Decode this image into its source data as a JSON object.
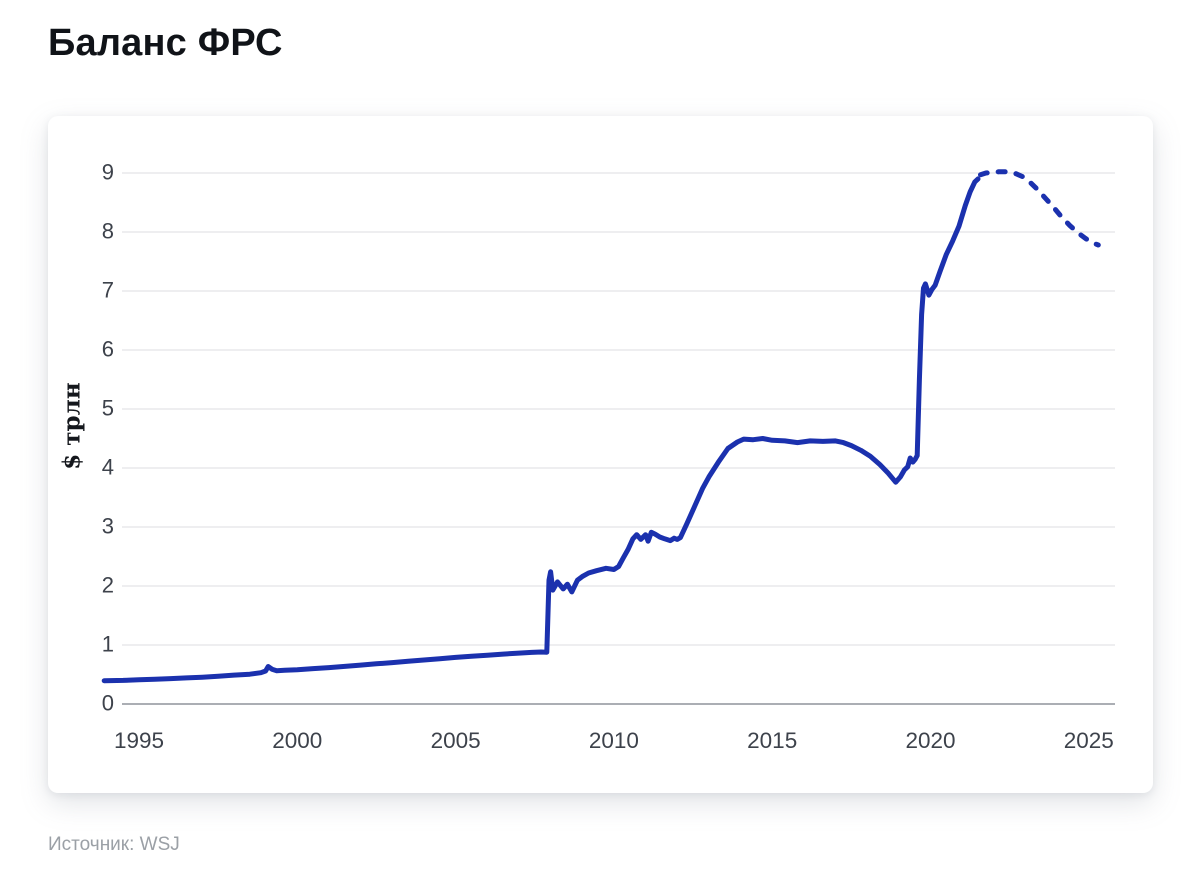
{
  "page": {
    "title": "Баланс ФРС",
    "source": "Источник: WSJ"
  },
  "chart_data": {
    "type": "line",
    "title": "Баланс ФРС",
    "xlabel": "",
    "ylabel": "$ трлн",
    "x_ticks": [
      1995,
      2000,
      2005,
      2010,
      2015,
      2020,
      2025
    ],
    "y_ticks": [
      0,
      1,
      2,
      3,
      4,
      5,
      6,
      7,
      8,
      9
    ],
    "xlim": [
      1993.9,
      2026.0
    ],
    "ylim": [
      0,
      9
    ],
    "grid": "horizontal",
    "legend": "none",
    "line_color": "#1b31ae",
    "series": [
      {
        "style": "solid",
        "points": [
          [
            1993.9,
            0.395
          ],
          [
            1994.5,
            0.4
          ],
          [
            1995,
            0.41
          ],
          [
            1995.5,
            0.42
          ],
          [
            1996,
            0.43
          ],
          [
            1996.5,
            0.443
          ],
          [
            1997,
            0.455
          ],
          [
            1997.5,
            0.47
          ],
          [
            1998,
            0.49
          ],
          [
            1998.5,
            0.505
          ],
          [
            1998.85,
            0.53
          ],
          [
            1999.0,
            0.56
          ],
          [
            1999.08,
            0.635
          ],
          [
            1999.2,
            0.59
          ],
          [
            1999.35,
            0.565
          ],
          [
            1999.6,
            0.572
          ],
          [
            2000,
            0.582
          ],
          [
            2000.5,
            0.6
          ],
          [
            2001,
            0.617
          ],
          [
            2001.5,
            0.638
          ],
          [
            2002,
            0.66
          ],
          [
            2002.5,
            0.681
          ],
          [
            2003,
            0.702
          ],
          [
            2003.5,
            0.723
          ],
          [
            2004,
            0.745
          ],
          [
            2004.5,
            0.768
          ],
          [
            2005,
            0.79
          ],
          [
            2005.5,
            0.808
          ],
          [
            2006,
            0.825
          ],
          [
            2006.5,
            0.845
          ],
          [
            2007,
            0.862
          ],
          [
            2007.4,
            0.875
          ],
          [
            2007.7,
            0.882
          ],
          [
            2007.88,
            0.878
          ],
          [
            2007.95,
            2.1
          ],
          [
            2008.0,
            2.24
          ],
          [
            2008.07,
            1.93
          ],
          [
            2008.22,
            2.07
          ],
          [
            2008.4,
            1.95
          ],
          [
            2008.53,
            2.03
          ],
          [
            2008.67,
            1.9
          ],
          [
            2008.85,
            2.1
          ],
          [
            2009.0,
            2.16
          ],
          [
            2009.2,
            2.22
          ],
          [
            2009.45,
            2.26
          ],
          [
            2009.75,
            2.3
          ],
          [
            2010.0,
            2.28
          ],
          [
            2010.15,
            2.33
          ],
          [
            2010.3,
            2.48
          ],
          [
            2010.45,
            2.62
          ],
          [
            2010.6,
            2.8
          ],
          [
            2010.72,
            2.87
          ],
          [
            2010.85,
            2.79
          ],
          [
            2011.0,
            2.87
          ],
          [
            2011.08,
            2.76
          ],
          [
            2011.18,
            2.91
          ],
          [
            2011.3,
            2.88
          ],
          [
            2011.45,
            2.83
          ],
          [
            2011.6,
            2.8
          ],
          [
            2011.78,
            2.77
          ],
          [
            2011.9,
            2.81
          ],
          [
            2012.0,
            2.79
          ],
          [
            2012.1,
            2.82
          ],
          [
            2012.3,
            3.05
          ],
          [
            2012.55,
            3.35
          ],
          [
            2012.8,
            3.65
          ],
          [
            2013.0,
            3.85
          ],
          [
            2013.3,
            4.1
          ],
          [
            2013.6,
            4.33
          ],
          [
            2013.9,
            4.44
          ],
          [
            2014.1,
            4.49
          ],
          [
            2014.4,
            4.48
          ],
          [
            2014.7,
            4.5
          ],
          [
            2015.0,
            4.47
          ],
          [
            2015.4,
            4.46
          ],
          [
            2015.8,
            4.43
          ],
          [
            2016.2,
            4.46
          ],
          [
            2016.6,
            4.45
          ],
          [
            2017.0,
            4.46
          ],
          [
            2017.25,
            4.43
          ],
          [
            2017.5,
            4.38
          ],
          [
            2017.8,
            4.3
          ],
          [
            2018.1,
            4.2
          ],
          [
            2018.4,
            4.06
          ],
          [
            2018.65,
            3.92
          ],
          [
            2018.9,
            3.76
          ],
          [
            2019.05,
            3.85
          ],
          [
            2019.18,
            3.97
          ],
          [
            2019.28,
            4.02
          ],
          [
            2019.36,
            4.17
          ],
          [
            2019.44,
            4.1
          ],
          [
            2019.52,
            4.15
          ],
          [
            2019.58,
            4.21
          ],
          [
            2019.65,
            5.5
          ],
          [
            2019.72,
            6.6
          ],
          [
            2019.78,
            7.05
          ],
          [
            2019.84,
            7.12
          ],
          [
            2019.95,
            6.93
          ],
          [
            2020.05,
            7.03
          ],
          [
            2020.15,
            7.1
          ],
          [
            2020.3,
            7.33
          ],
          [
            2020.5,
            7.62
          ],
          [
            2020.7,
            7.85
          ],
          [
            2020.9,
            8.1
          ],
          [
            2021.1,
            8.45
          ],
          [
            2021.25,
            8.68
          ],
          [
            2021.4,
            8.85
          ],
          [
            2021.5,
            8.9
          ]
        ]
      },
      {
        "style": "dashed",
        "points": [
          [
            2021.58,
            8.97
          ],
          [
            2021.75,
            9.0
          ],
          [
            2021.95,
            9.01
          ],
          [
            2022.15,
            9.02
          ],
          [
            2022.4,
            9.02
          ],
          [
            2022.65,
            9.0
          ],
          [
            2022.9,
            8.94
          ],
          [
            2023.15,
            8.84
          ],
          [
            2023.4,
            8.71
          ],
          [
            2023.65,
            8.56
          ],
          [
            2023.9,
            8.41
          ],
          [
            2024.15,
            8.25
          ],
          [
            2024.4,
            8.11
          ],
          [
            2024.65,
            7.99
          ],
          [
            2024.9,
            7.89
          ],
          [
            2025.1,
            7.82
          ],
          [
            2025.3,
            7.78
          ]
        ]
      }
    ]
  }
}
